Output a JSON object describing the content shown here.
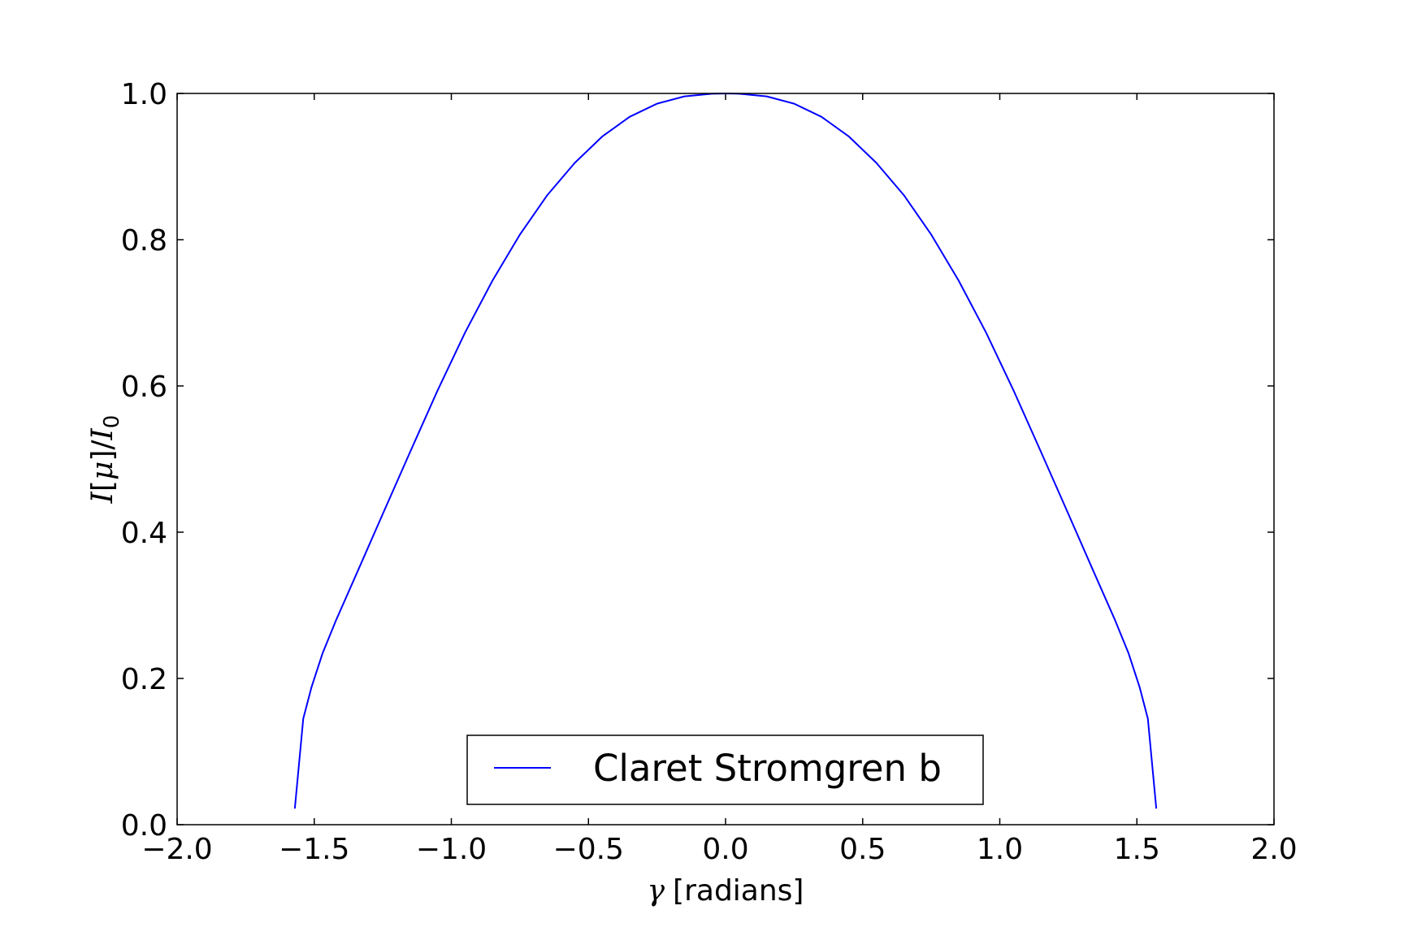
{
  "chart_data": {
    "type": "line",
    "xlabel": "γ [radians]",
    "xlabel_symbol": "γ",
    "xlabel_unit": "[radians]",
    "ylabel": "I[μ]/I0",
    "xlim": [
      -2.0,
      2.0
    ],
    "ylim": [
      0.0,
      1.0
    ],
    "xticks": [
      -2.0,
      -1.5,
      -1.0,
      -0.5,
      0.0,
      0.5,
      1.0,
      1.5,
      2.0
    ],
    "xtick_labels": [
      "−2.0",
      "−1.5",
      "−1.0",
      "−0.5",
      "0.0",
      "0.5",
      "1.0",
      "1.5",
      "2.0"
    ],
    "yticks": [
      0.0,
      0.2,
      0.4,
      0.6,
      0.8,
      1.0
    ],
    "ytick_labels": [
      "0.0",
      "0.2",
      "0.4",
      "0.6",
      "0.8",
      "1.0"
    ],
    "grid": false,
    "legend_position": "lower center",
    "series": [
      {
        "name": "Claret Stromgren b",
        "color": "#0000ff",
        "x": [
          -1.5708,
          -1.54,
          -1.51,
          -1.47,
          -1.42,
          -1.34,
          -1.25,
          -1.15,
          -1.05,
          -0.95,
          -0.85,
          -0.75,
          -0.65,
          -0.55,
          -0.45,
          -0.35,
          -0.25,
          -0.15,
          -0.05,
          0.0,
          0.05,
          0.15,
          0.25,
          0.35,
          0.45,
          0.55,
          0.65,
          0.75,
          0.85,
          0.95,
          1.05,
          1.15,
          1.25,
          1.34,
          1.42,
          1.47,
          1.51,
          1.54,
          1.5708
        ],
        "y": [
          0.022,
          0.145,
          0.188,
          0.234,
          0.28,
          0.348,
          0.425,
          0.51,
          0.594,
          0.673,
          0.744,
          0.807,
          0.861,
          0.905,
          0.941,
          0.968,
          0.986,
          0.996,
          0.9996,
          1.0,
          0.9996,
          0.996,
          0.986,
          0.968,
          0.941,
          0.905,
          0.861,
          0.807,
          0.744,
          0.673,
          0.594,
          0.51,
          0.425,
          0.348,
          0.28,
          0.234,
          0.188,
          0.145,
          0.022
        ]
      }
    ]
  }
}
